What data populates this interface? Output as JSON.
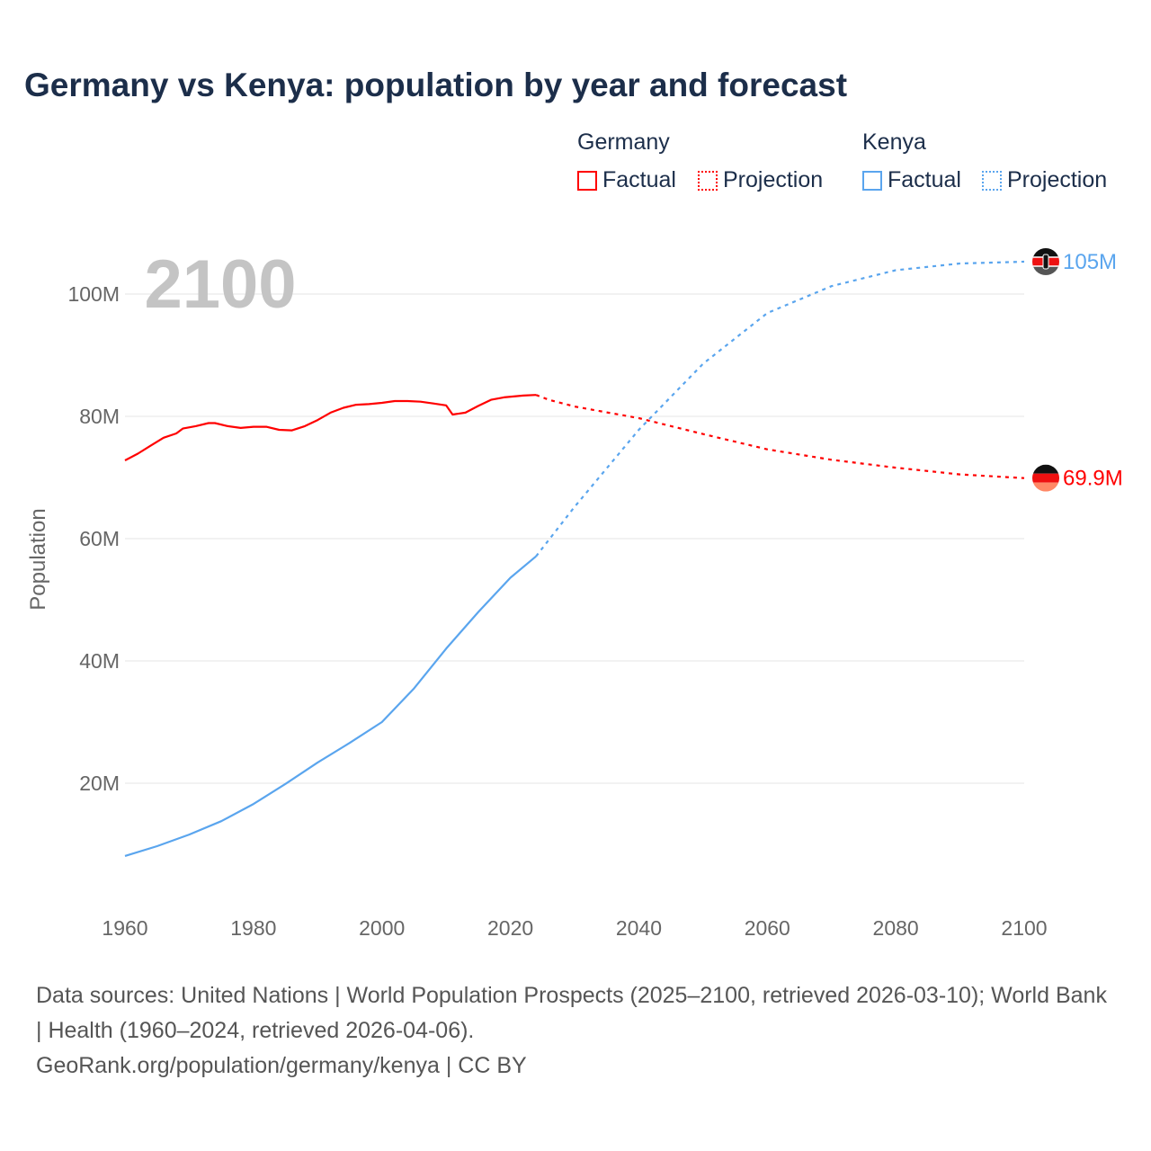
{
  "title": "Germany vs Kenya: population by year and forecast",
  "legend": {
    "groups": [
      {
        "name": "Germany",
        "items": [
          "Factual",
          "Projection"
        ],
        "color": "#ff0000"
      },
      {
        "name": "Kenya",
        "items": [
          "Factual",
          "Projection"
        ],
        "color": "#5aa5ee"
      }
    ]
  },
  "year_label": "2100",
  "footer": {
    "line1": "Data sources: United Nations | World Population Prospects (2025–2100, retrieved 2026-03-10); World Bank | Health (1960–2024, retrieved 2026-04-06).",
    "line2": "GeoRank.org/population/germany/kenya | CC BY"
  },
  "chart_data": {
    "type": "line",
    "title": "Germany vs Kenya: population by year and forecast",
    "xlabel": "",
    "ylabel": "Population",
    "xlim": [
      1960,
      2100
    ],
    "ylim": [
      0,
      110
    ],
    "yunit": "M",
    "x_ticks": [
      "1960",
      "1980",
      "2000",
      "2020",
      "2040",
      "2060",
      "2080",
      "2100"
    ],
    "y_ticks": [
      "20M",
      "40M",
      "60M",
      "80M",
      "100M"
    ],
    "grid": true,
    "legend_position": "top-right",
    "series": [
      {
        "name": "Germany Factual",
        "color": "#ff0000",
        "dash": false,
        "points": [
          [
            1960,
            72.8
          ],
          [
            1962,
            73.9
          ],
          [
            1964,
            75.2
          ],
          [
            1966,
            76.5
          ],
          [
            1968,
            77.2
          ],
          [
            1969,
            78.0
          ],
          [
            1971,
            78.4
          ],
          [
            1973,
            78.9
          ],
          [
            1974,
            78.9
          ],
          [
            1976,
            78.4
          ],
          [
            1978,
            78.1
          ],
          [
            1980,
            78.3
          ],
          [
            1982,
            78.3
          ],
          [
            1984,
            77.8
          ],
          [
            1986,
            77.7
          ],
          [
            1988,
            78.4
          ],
          [
            1990,
            79.4
          ],
          [
            1992,
            80.6
          ],
          [
            1994,
            81.4
          ],
          [
            1996,
            81.9
          ],
          [
            1998,
            82.0
          ],
          [
            2000,
            82.2
          ],
          [
            2002,
            82.5
          ],
          [
            2004,
            82.5
          ],
          [
            2006,
            82.4
          ],
          [
            2008,
            82.1
          ],
          [
            2010,
            81.8
          ],
          [
            2011,
            80.3
          ],
          [
            2013,
            80.6
          ],
          [
            2015,
            81.7
          ],
          [
            2017,
            82.7
          ],
          [
            2019,
            83.1
          ],
          [
            2022,
            83.4
          ],
          [
            2024,
            83.5
          ]
        ]
      },
      {
        "name": "Germany Projection",
        "color": "#ff0000",
        "dash": true,
        "points": [
          [
            2024,
            83.5
          ],
          [
            2026,
            82.7
          ],
          [
            2030,
            81.6
          ],
          [
            2040,
            79.7
          ],
          [
            2050,
            77.1
          ],
          [
            2060,
            74.6
          ],
          [
            2070,
            72.9
          ],
          [
            2080,
            71.6
          ],
          [
            2090,
            70.5
          ],
          [
            2100,
            69.9
          ]
        ]
      },
      {
        "name": "Kenya Factual",
        "color": "#5aa5ee",
        "dash": false,
        "points": [
          [
            1960,
            8.1
          ],
          [
            1965,
            9.7
          ],
          [
            1970,
            11.6
          ],
          [
            1975,
            13.8
          ],
          [
            1980,
            16.6
          ],
          [
            1985,
            19.9
          ],
          [
            1990,
            23.4
          ],
          [
            1995,
            26.6
          ],
          [
            2000,
            30.0
          ],
          [
            2005,
            35.5
          ],
          [
            2010,
            42.0
          ],
          [
            2015,
            48.0
          ],
          [
            2020,
            53.6
          ],
          [
            2024,
            57.1
          ]
        ]
      },
      {
        "name": "Kenya Projection",
        "color": "#5aa5ee",
        "dash": true,
        "points": [
          [
            2024,
            57.1
          ],
          [
            2030,
            65.2
          ],
          [
            2040,
            77.8
          ],
          [
            2050,
            88.6
          ],
          [
            2060,
            96.9
          ],
          [
            2070,
            101.3
          ],
          [
            2080,
            103.9
          ],
          [
            2090,
            105.0
          ],
          [
            2100,
            105.3
          ]
        ]
      }
    ],
    "end_labels": [
      {
        "series": "Kenya",
        "year": 2100,
        "value": 105.3,
        "label": "105M",
        "color": "#5aa5ee"
      },
      {
        "series": "Germany",
        "year": 2100,
        "value": 69.9,
        "label": "69.9M",
        "color": "#ff0000"
      }
    ]
  }
}
